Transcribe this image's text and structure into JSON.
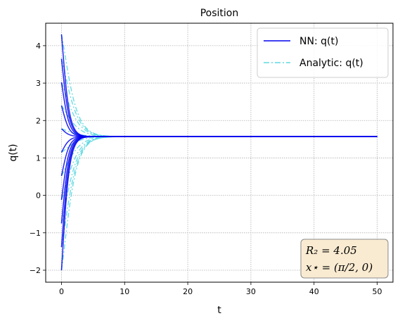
{
  "chart_data": {
    "type": "line",
    "title": "Position",
    "xlabel": "t",
    "ylabel": "q(t)",
    "xlim": [
      -2.5,
      52.5
    ],
    "ylim": [
      -2.32,
      4.6
    ],
    "xticks": [
      0,
      10,
      20,
      30,
      40,
      50
    ],
    "yticks": [
      -2,
      -1,
      0,
      1,
      2,
      3,
      4
    ],
    "ytick_labels": [
      "−2",
      "−1",
      "0",
      "1",
      "2",
      "3",
      "4"
    ],
    "grid": true,
    "legend_position": "top-right",
    "t_range": [
      0,
      50
    ],
    "equilibrium": 1.5708,
    "initial_values": [
      4.3,
      3.65,
      3.02,
      2.4,
      1.78,
      1.15,
      0.52,
      -0.12,
      -0.75,
      -1.38,
      -2.0
    ],
    "series": [
      {
        "name": "NN: q(t)",
        "color": "#0000ee",
        "style": "solid"
      },
      {
        "name": "Analytic: q(t)",
        "color": "#5fd8e0",
        "style": "dashdot"
      }
    ],
    "annotation": {
      "line1": "R₂ = 4.05",
      "line2": "x⋆ = (π/2, 0)",
      "position": "bottom-right"
    }
  },
  "colors": {
    "nn": "#0000ee",
    "analytic": "#5fd8e0",
    "annotation_bg": "#f9ebd1",
    "annotation_border": "#8a8a8a",
    "grid": "#b0b0b0"
  }
}
